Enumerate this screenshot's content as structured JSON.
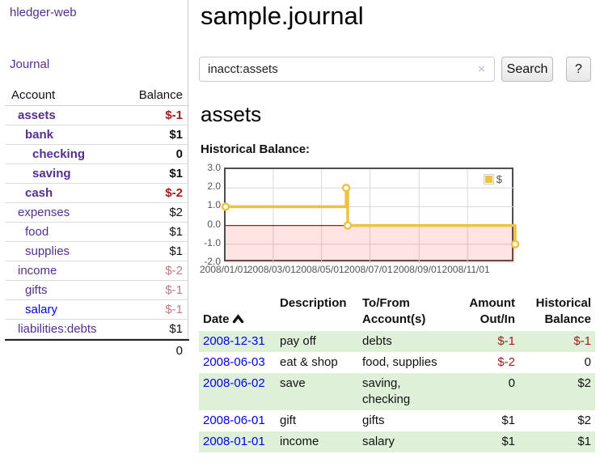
{
  "colors": {
    "link_purple": "#542e91",
    "link_blue": "#0000ee",
    "neg_strong": "#a01d1d",
    "neg_muted": "#c17a80",
    "text_dark": "#111111",
    "row_green": "#dff0d8",
    "chart_gold": "#edc240",
    "chart_zero_line": "#9b1c1c",
    "chart_negative_fill": "rgba(255,60,60,0.14)",
    "chart_grid": "#d8d8d8"
  },
  "header": {
    "app_title": "hledger-web"
  },
  "sidebar": {
    "journal_link": "Journal",
    "account_table": {
      "col_account": "Account",
      "col_balance": "Balance",
      "rows": [
        {
          "account": "assets",
          "depth": 1,
          "bold": true,
          "balance": "$-1",
          "neg": "strong"
        },
        {
          "account": "bank",
          "depth": 2,
          "bold": true,
          "balance": "$1"
        },
        {
          "account": "checking",
          "depth": 3,
          "bold": true,
          "balance": "0"
        },
        {
          "account": "saving",
          "depth": 3,
          "bold": true,
          "balance": "$1"
        },
        {
          "account": "cash",
          "depth": 2,
          "bold": true,
          "balance": "$-2",
          "neg": "strong"
        },
        {
          "account": "expenses",
          "depth": 1,
          "bold": false,
          "balance": "$2"
        },
        {
          "account": "food",
          "depth": 2,
          "bold": false,
          "balance": "$1"
        },
        {
          "account": "supplies",
          "depth": 2,
          "bold": false,
          "balance": "$1"
        },
        {
          "account": "income",
          "depth": 1,
          "bold": false,
          "balance": "$-2",
          "neg": "muted"
        },
        {
          "account": "gifts",
          "depth": 2,
          "bold": false,
          "balance": "$-1",
          "neg": "muted"
        },
        {
          "account": "salary",
          "depth": 2,
          "bold": false,
          "balance": "$-1",
          "neg": "muted",
          "link": "blue"
        },
        {
          "account": "liabilities:debts",
          "depth": 1,
          "bold": false,
          "balance": "$1"
        }
      ],
      "total": "0"
    }
  },
  "main": {
    "title": "sample.journal",
    "search": {
      "value": "inacct:assets",
      "clear_label": "×",
      "search_button": "Search",
      "help_button": "?"
    },
    "account_heading": "assets",
    "chart_title": "Historical Balance:"
  },
  "chart_data": {
    "type": "line",
    "step": true,
    "title": "Historical Balance",
    "xlabel": "",
    "ylabel": "",
    "xlim": [
      "2008-01-01",
      "2008-12-31"
    ],
    "ylim": [
      -2,
      3
    ],
    "grid": true,
    "legend_position": "top-right",
    "legend": [
      {
        "label": "$",
        "color": "#edc240"
      }
    ],
    "series": [
      {
        "name": "$",
        "color": "#edc240",
        "points": [
          {
            "date": "2008-01-01",
            "value": 1
          },
          {
            "date": "2008-06-01",
            "value": 2
          },
          {
            "date": "2008-06-03",
            "value": 0
          },
          {
            "date": "2008-12-31",
            "value": -1
          }
        ]
      }
    ],
    "yticks": [
      {
        "label": "3.0",
        "value": 3
      },
      {
        "label": "2.0",
        "value": 2
      },
      {
        "label": "1.0",
        "value": 1
      },
      {
        "label": "0.0",
        "value": 0
      },
      {
        "label": "-1.0",
        "value": -1
      },
      {
        "label": "-2.0",
        "value": -2
      }
    ],
    "xticks": [
      {
        "label": "2008/01/01",
        "date": "2008-01-01"
      },
      {
        "label": "2008/03/01",
        "date": "2008-03-01"
      },
      {
        "label": "2008/05/01",
        "date": "2008-05-01"
      },
      {
        "label": "2008/07/01",
        "date": "2008-07-01"
      },
      {
        "label": "2008/09/01",
        "date": "2008-09-01"
      },
      {
        "label": "2008/11/01",
        "date": "2008-11-01"
      }
    ],
    "negative_region_shaded": true
  },
  "register_table": {
    "headers": {
      "date": "Date",
      "description": "Description",
      "tofrom": "To/From\nAccount(s)",
      "amount": "Amount\nOut/In",
      "balance": "Historical\nBalance"
    },
    "rows": [
      {
        "date": "2008-12-31",
        "description": "pay off",
        "accounts": "debts",
        "amount": "$-1",
        "amount_neg": true,
        "balance": "$-1",
        "balance_neg": true,
        "shaded": true
      },
      {
        "date": "2008-06-03",
        "description": "eat & shop",
        "accounts": "food, supplies",
        "amount": "$-2",
        "amount_neg": true,
        "balance": "0",
        "balance_neg": false,
        "shaded": false
      },
      {
        "date": "2008-06-02",
        "description": "save",
        "accounts": "saving,\nchecking",
        "amount": "0",
        "amount_neg": false,
        "balance": "$2",
        "balance_neg": false,
        "shaded": true
      },
      {
        "date": "2008-06-01",
        "description": "gift",
        "accounts": "gifts",
        "amount": "$1",
        "amount_neg": false,
        "balance": "$2",
        "balance_neg": false,
        "shaded": false
      },
      {
        "date": "2008-01-01",
        "description": "income",
        "accounts": "salary",
        "amount": "$1",
        "amount_neg": false,
        "balance": "$1",
        "balance_neg": false,
        "shaded": true
      }
    ]
  }
}
